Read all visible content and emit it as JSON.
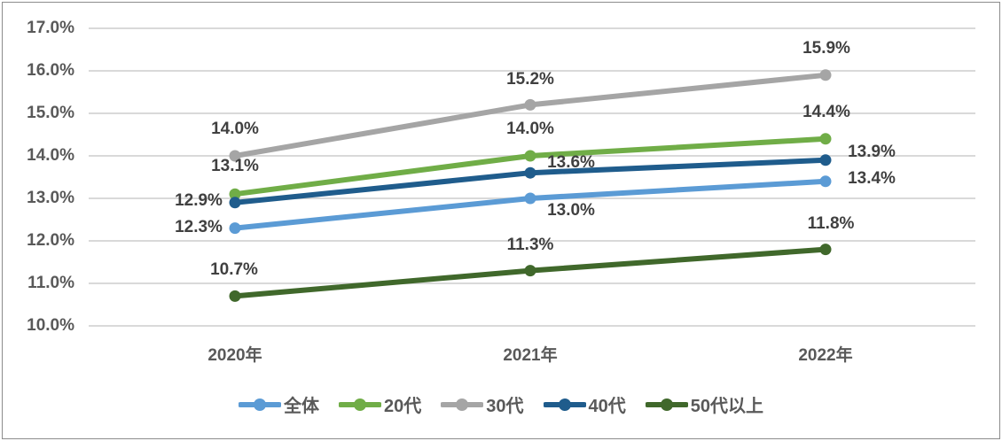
{
  "chart": {
    "background": "#FFFFFF",
    "border_color": "#8C8C8C",
    "grid_color": "#D9D9D9",
    "axis_text_color": "#595959",
    "data_label_color": "#404040"
  },
  "chart_data": {
    "type": "line",
    "title": "",
    "xlabel": "",
    "ylabel": "",
    "categories": [
      "2020年",
      "2021年",
      "2022年"
    ],
    "y_ticks": [
      "17.0%",
      "16.0%",
      "15.0%",
      "14.0%",
      "13.0%",
      "12.0%",
      "11.0%",
      "10.0%"
    ],
    "ylim": [
      10.0,
      17.0
    ],
    "ytick_step": 1.0,
    "grid": true,
    "legend_position": "bottom",
    "series": [
      {
        "name": "全体",
        "color": "#5B9BD5",
        "values": [
          12.3,
          13.0,
          13.4
        ],
        "labels": [
          "12.3%",
          "13.0%",
          "13.4%"
        ]
      },
      {
        "name": "20代",
        "color": "#70AD47",
        "values": [
          13.1,
          14.0,
          14.4
        ],
        "labels": [
          "13.1%",
          "14.0%",
          "14.4%"
        ]
      },
      {
        "name": "30代",
        "color": "#A5A5A5",
        "values": [
          14.0,
          15.2,
          15.9
        ],
        "labels": [
          "14.0%",
          "15.2%",
          "15.9%"
        ]
      },
      {
        "name": "40代",
        "color": "#1F5C8C",
        "values": [
          12.9,
          13.6,
          13.9
        ],
        "labels": [
          "12.9%",
          "13.6%",
          "13.9%"
        ]
      },
      {
        "name": "50代以上",
        "color": "#40682B",
        "values": [
          10.7,
          11.3,
          11.8
        ],
        "labels": [
          "10.7%",
          "11.3%",
          "11.8%"
        ]
      }
    ]
  }
}
